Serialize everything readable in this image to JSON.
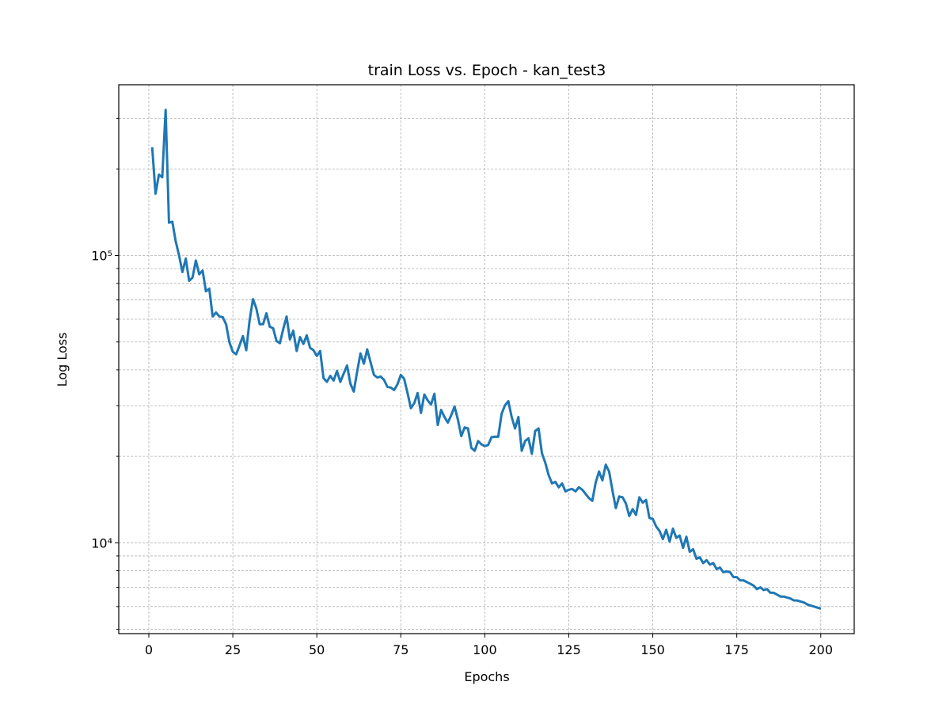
{
  "chart_data": {
    "type": "line",
    "title": "train Loss vs. Epoch - kan_test3",
    "x_label": "Epochs",
    "y_label": "Log Loss",
    "x": [
      1,
      2,
      3,
      4,
      5,
      6,
      7,
      8,
      9,
      10,
      11,
      12,
      13,
      14,
      15,
      16,
      17,
      18,
      19,
      20,
      21,
      22,
      23,
      24,
      25,
      26,
      27,
      28,
      29,
      30,
      31,
      32,
      33,
      34,
      35,
      36,
      37,
      38,
      39,
      40,
      41,
      42,
      43,
      44,
      45,
      46,
      47,
      48,
      49,
      50,
      51,
      52,
      53,
      54,
      55,
      56,
      57,
      58,
      59,
      60,
      61,
      62,
      63,
      64,
      65,
      66,
      67,
      68,
      69,
      70,
      71,
      72,
      73,
      74,
      75,
      76,
      77,
      78,
      79,
      80,
      81,
      82,
      83,
      84,
      85,
      86,
      87,
      88,
      89,
      90,
      91,
      92,
      93,
      94,
      95,
      96,
      97,
      98,
      99,
      100,
      101,
      102,
      103,
      104,
      105,
      106,
      107,
      108,
      109,
      110,
      111,
      112,
      113,
      114,
      115,
      116,
      117,
      118,
      119,
      120,
      121,
      122,
      123,
      124,
      125,
      126,
      127,
      128,
      129,
      130,
      131,
      132,
      133,
      134,
      135,
      136,
      137,
      138,
      139,
      140,
      141,
      142,
      143,
      144,
      145,
      146,
      147,
      148,
      149,
      150,
      151,
      152,
      153,
      154,
      155,
      156,
      157,
      158,
      159,
      160,
      161,
      162,
      163,
      164,
      165,
      166,
      167,
      168,
      169,
      170,
      171,
      172,
      173,
      174,
      175,
      176,
      177,
      178,
      179,
      180,
      181,
      182,
      183,
      184,
      185,
      186,
      187,
      188,
      189,
      190,
      191,
      192,
      193,
      194,
      195,
      196,
      197,
      198,
      199,
      200
    ],
    "series": [
      {
        "name": "train Loss",
        "color": "#1f77b4",
        "values": [
          238000,
          164000,
          191000,
          187000,
          321000,
          130000,
          131000,
          112000,
          100000,
          87500,
          97500,
          81600,
          83700,
          96000,
          86000,
          88600,
          75000,
          76600,
          61300,
          63300,
          61300,
          61000,
          57600,
          49800,
          46200,
          45300,
          48600,
          52400,
          46800,
          59500,
          70500,
          65400,
          57600,
          57600,
          62900,
          56500,
          55800,
          50400,
          49500,
          55400,
          61300,
          51000,
          54700,
          46500,
          52000,
          49200,
          52700,
          47700,
          46800,
          44700,
          46500,
          37400,
          36300,
          38100,
          36700,
          39600,
          36300,
          38800,
          41400,
          35800,
          33600,
          39400,
          45600,
          42000,
          47100,
          42500,
          38400,
          37600,
          37900,
          36900,
          34900,
          34700,
          34000,
          35600,
          38400,
          37200,
          33200,
          29400,
          30600,
          33200,
          28300,
          32800,
          31300,
          30300,
          33000,
          25700,
          29000,
          27400,
          26200,
          27800,
          29800,
          26800,
          23500,
          25200,
          25000,
          21400,
          20900,
          22600,
          22000,
          21700,
          21900,
          23300,
          23400,
          23400,
          28100,
          30100,
          31100,
          27400,
          25000,
          27400,
          20900,
          22600,
          23100,
          20400,
          24500,
          25000,
          20500,
          19000,
          17200,
          16100,
          16300,
          15600,
          16100,
          15100,
          15300,
          15400,
          15100,
          15600,
          15300,
          14800,
          14300,
          14000,
          16200,
          17700,
          16500,
          18700,
          17700,
          15200,
          13200,
          14500,
          14400,
          13700,
          12400,
          13100,
          12500,
          14400,
          13800,
          14100,
          12200,
          12100,
          11400,
          11000,
          10300,
          11100,
          10100,
          11200,
          10400,
          10600,
          9600,
          10500,
          9300,
          9500,
          8800,
          8900,
          8500,
          8700,
          8400,
          8500,
          8100,
          8200,
          7900,
          7950,
          7900,
          7600,
          7600,
          7400,
          7400,
          7300,
          7200,
          7100,
          6900,
          7000,
          6850,
          6900,
          6700,
          6700,
          6600,
          6500,
          6500,
          6450,
          6400,
          6300,
          6300,
          6250,
          6200,
          6100,
          6050,
          6000,
          5950,
          5900
        ]
      }
    ],
    "xlim": [
      -8.95,
      209.95
    ],
    "xticks": [
      0,
      25,
      50,
      75,
      100,
      125,
      150,
      175,
      200
    ],
    "ylim": [
      4830,
      392600
    ],
    "log_y": true,
    "yticks": [
      {
        "value": 10000,
        "label": "10⁴"
      },
      {
        "value": 100000,
        "label": "10⁵"
      }
    ],
    "yminorticks": [
      5000,
      6000,
      7000,
      8000,
      9000,
      20000,
      30000,
      40000,
      50000,
      60000,
      70000,
      80000,
      90000,
      200000,
      300000
    ],
    "grid": true
  }
}
